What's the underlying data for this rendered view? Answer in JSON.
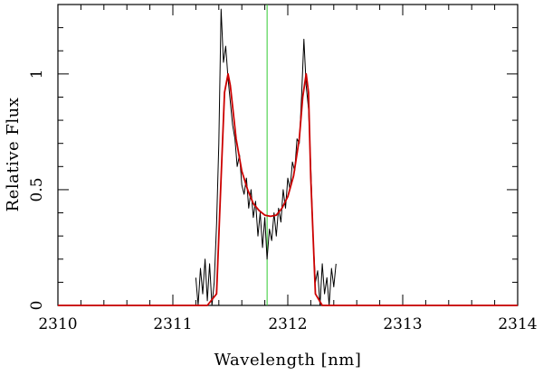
{
  "chart_data": {
    "type": "line",
    "xlabel": "Wavelength [nm]",
    "ylabel": "Relative Flux",
    "xlim": [
      2310,
      2314
    ],
    "ylim": [
      0,
      1.3
    ],
    "x_ticks": [
      2310,
      2311,
      2312,
      2313,
      2314
    ],
    "x_tick_labels": [
      "2310",
      "2311",
      "2312",
      "2313",
      "2314"
    ],
    "y_ticks": [
      0,
      0.5,
      1
    ],
    "y_tick_labels": [
      "0",
      "0.5",
      "1"
    ],
    "grid": false,
    "legend": "none",
    "vertical_marker": {
      "x": 2311.82,
      "color": "#33cc33"
    },
    "series": [
      {
        "color": "#000000",
        "style": "noisy observed spectrum",
        "x": [
          2311.2,
          2311.22,
          2311.24,
          2311.26,
          2311.28,
          2311.3,
          2311.32,
          2311.34,
          2311.36,
          2311.38,
          2311.4,
          2311.42,
          2311.44,
          2311.46,
          2311.48,
          2311.5,
          2311.52,
          2311.54,
          2311.56,
          2311.58,
          2311.6,
          2311.62,
          2311.64,
          2311.66,
          2311.68,
          2311.7,
          2311.72,
          2311.74,
          2311.76,
          2311.78,
          2311.8,
          2311.82,
          2311.84,
          2311.86,
          2311.88,
          2311.9,
          2311.92,
          2311.94,
          2311.96,
          2311.98,
          2312.0,
          2312.02,
          2312.04,
          2312.06,
          2312.08,
          2312.1,
          2312.12,
          2312.14,
          2312.16,
          2312.18,
          2312.2,
          2312.22,
          2312.24,
          2312.26,
          2312.28,
          2312.3,
          2312.32,
          2312.34,
          2312.36,
          2312.38,
          2312.4,
          2312.42
        ],
        "y": [
          0.12,
          0.0,
          0.16,
          0.05,
          0.2,
          0.02,
          0.18,
          0.0,
          0.1,
          0.35,
          0.7,
          1.28,
          1.05,
          1.12,
          0.98,
          0.88,
          0.78,
          0.72,
          0.6,
          0.65,
          0.52,
          0.48,
          0.55,
          0.42,
          0.5,
          0.38,
          0.45,
          0.3,
          0.4,
          0.25,
          0.38,
          0.2,
          0.33,
          0.28,
          0.4,
          0.3,
          0.42,
          0.36,
          0.5,
          0.42,
          0.55,
          0.5,
          0.62,
          0.58,
          0.72,
          0.7,
          0.9,
          1.15,
          0.95,
          0.85,
          0.6,
          0.3,
          0.1,
          0.15,
          0.0,
          0.18,
          0.05,
          0.12,
          0.0,
          0.16,
          0.08,
          0.18
        ]
      },
      {
        "color": "#cc0000",
        "style": "smooth model fit",
        "x": [
          2310,
          2311.3,
          2311.38,
          2311.42,
          2311.45,
          2311.48,
          2311.5,
          2311.55,
          2311.6,
          2311.65,
          2311.7,
          2311.75,
          2311.8,
          2311.85,
          2311.9,
          2311.95,
          2312.0,
          2312.05,
          2312.1,
          2312.13,
          2312.16,
          2312.18,
          2312.2,
          2312.24,
          2312.3,
          2314
        ],
        "y": [
          0,
          0,
          0.05,
          0.55,
          0.92,
          1.0,
          0.95,
          0.72,
          0.58,
          0.5,
          0.44,
          0.41,
          0.39,
          0.385,
          0.39,
          0.42,
          0.47,
          0.56,
          0.72,
          0.9,
          1.0,
          0.92,
          0.55,
          0.05,
          0,
          0
        ]
      }
    ]
  }
}
